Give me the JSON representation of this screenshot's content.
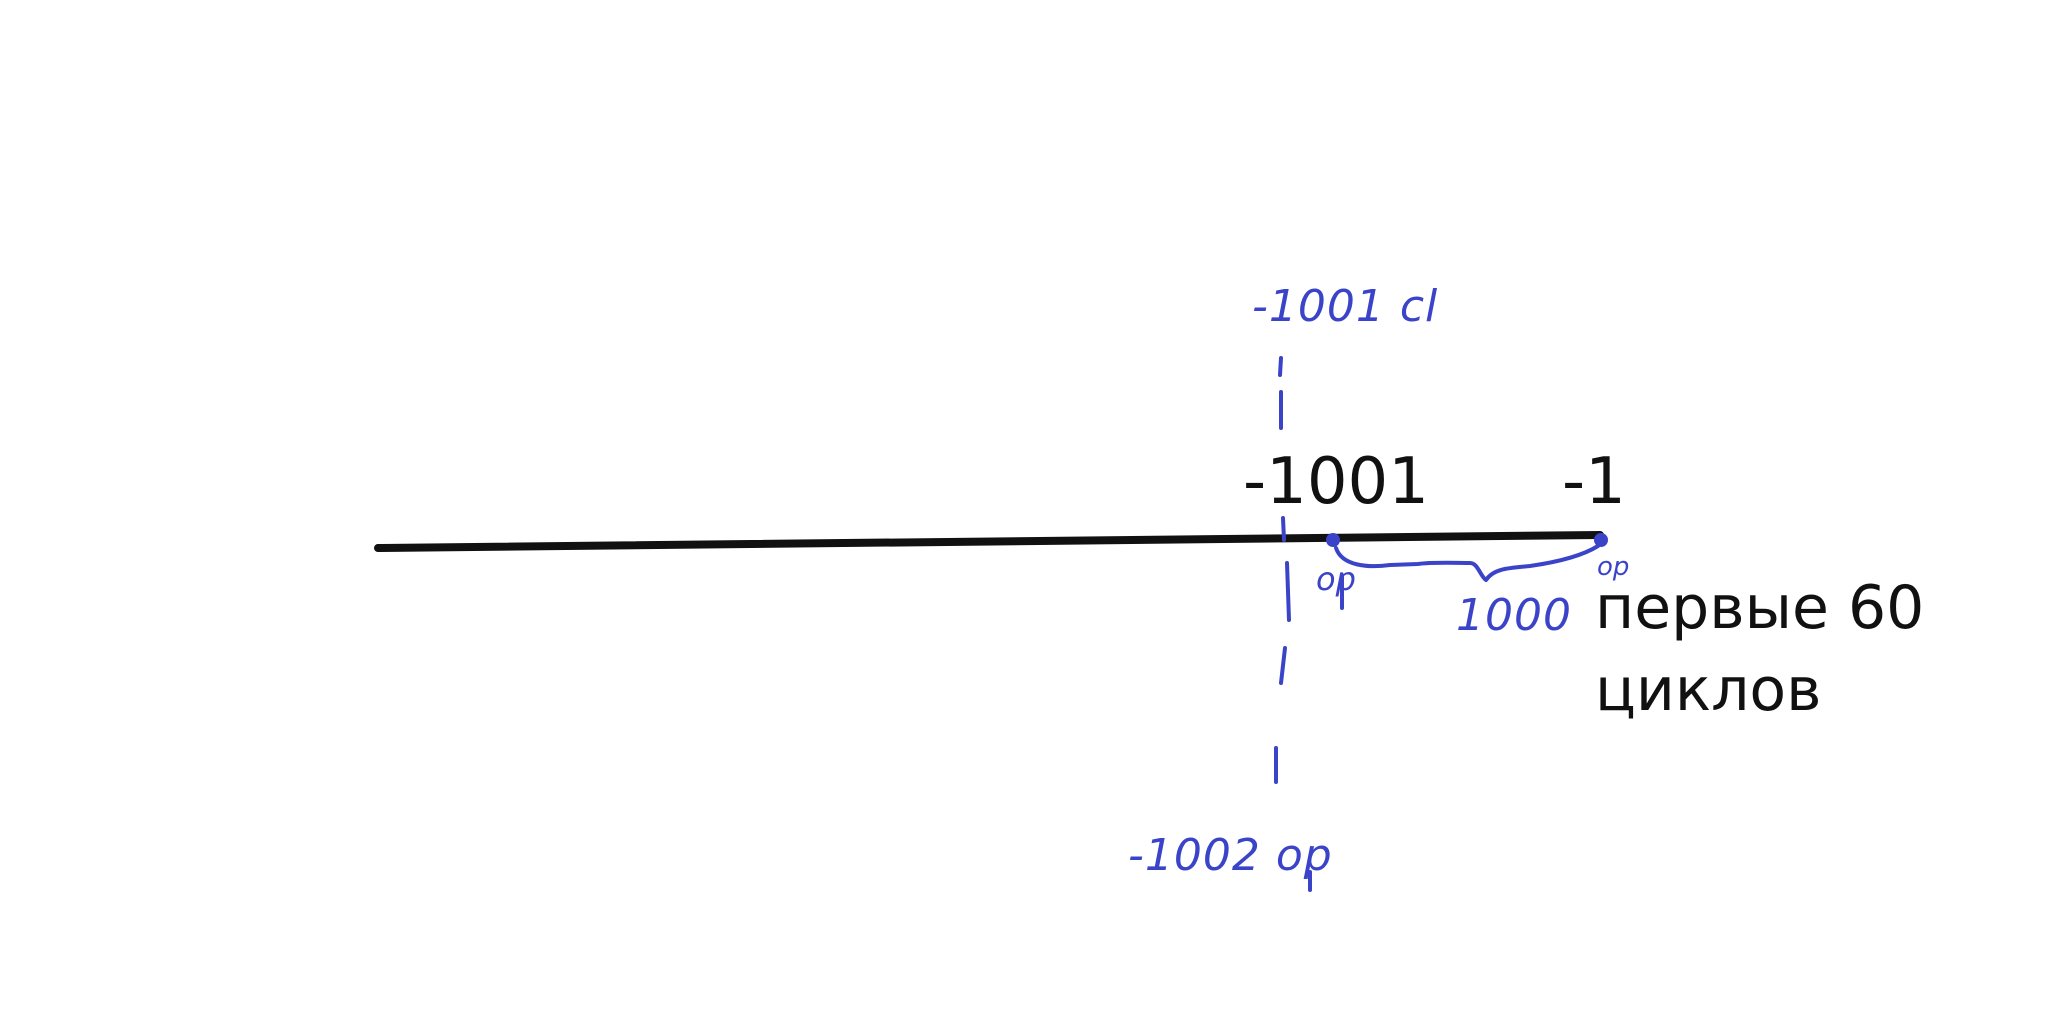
{
  "diagram": {
    "ticks": {
      "left": "-1001",
      "right": "-1"
    },
    "note": {
      "line1": "первые 60",
      "line2": "циклов"
    },
    "annotations": {
      "top": "-1001 cl",
      "bottom": "-1002 op",
      "span": "1000",
      "point_left": "op",
      "point_right": "op"
    },
    "colors": {
      "axis": "#111111",
      "ink": "#3b44c8",
      "text": "#111111"
    }
  }
}
